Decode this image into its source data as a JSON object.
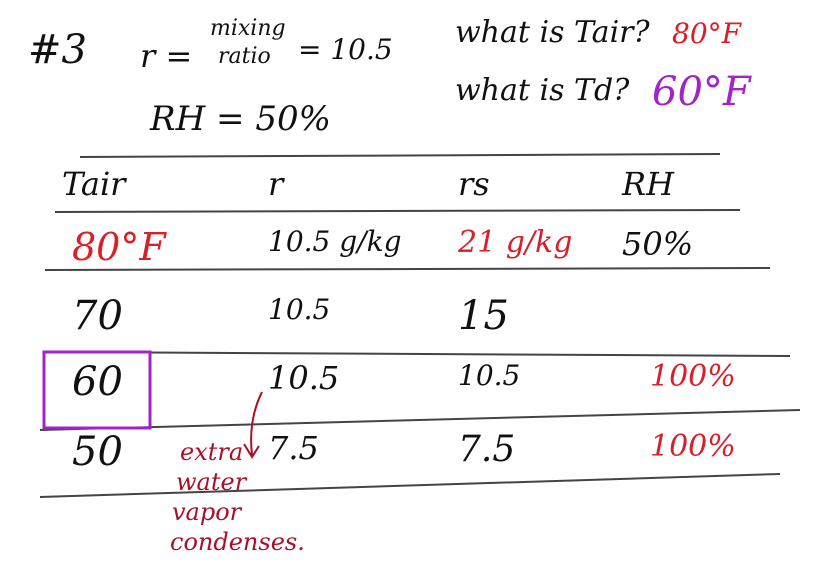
{
  "problem": {
    "number": "#3",
    "r_label": "r =",
    "r_name": [
      "mixing",
      "ratio"
    ],
    "r_value": "= 10.5",
    "rh": "RH = 50%"
  },
  "questions": [
    {
      "text": "what is Tair?",
      "answer": "80°F"
    },
    {
      "text": "what is Td?",
      "answer": "60°F"
    }
  ],
  "table": {
    "header": [
      "Tair",
      "r",
      "rs",
      "RH"
    ],
    "rows": [
      [
        "80°F",
        "10.5 g/kg",
        "21 g/kg",
        "50%"
      ],
      [
        "70",
        "10.5",
        "15",
        null
      ],
      [
        "60",
        "10.5",
        "10.5",
        "100%"
      ],
      [
        "50",
        "7.5",
        "7.5",
        "100%"
      ]
    ]
  },
  "annotation": [
    "extra",
    "water",
    "vapor",
    "condenses."
  ]
}
